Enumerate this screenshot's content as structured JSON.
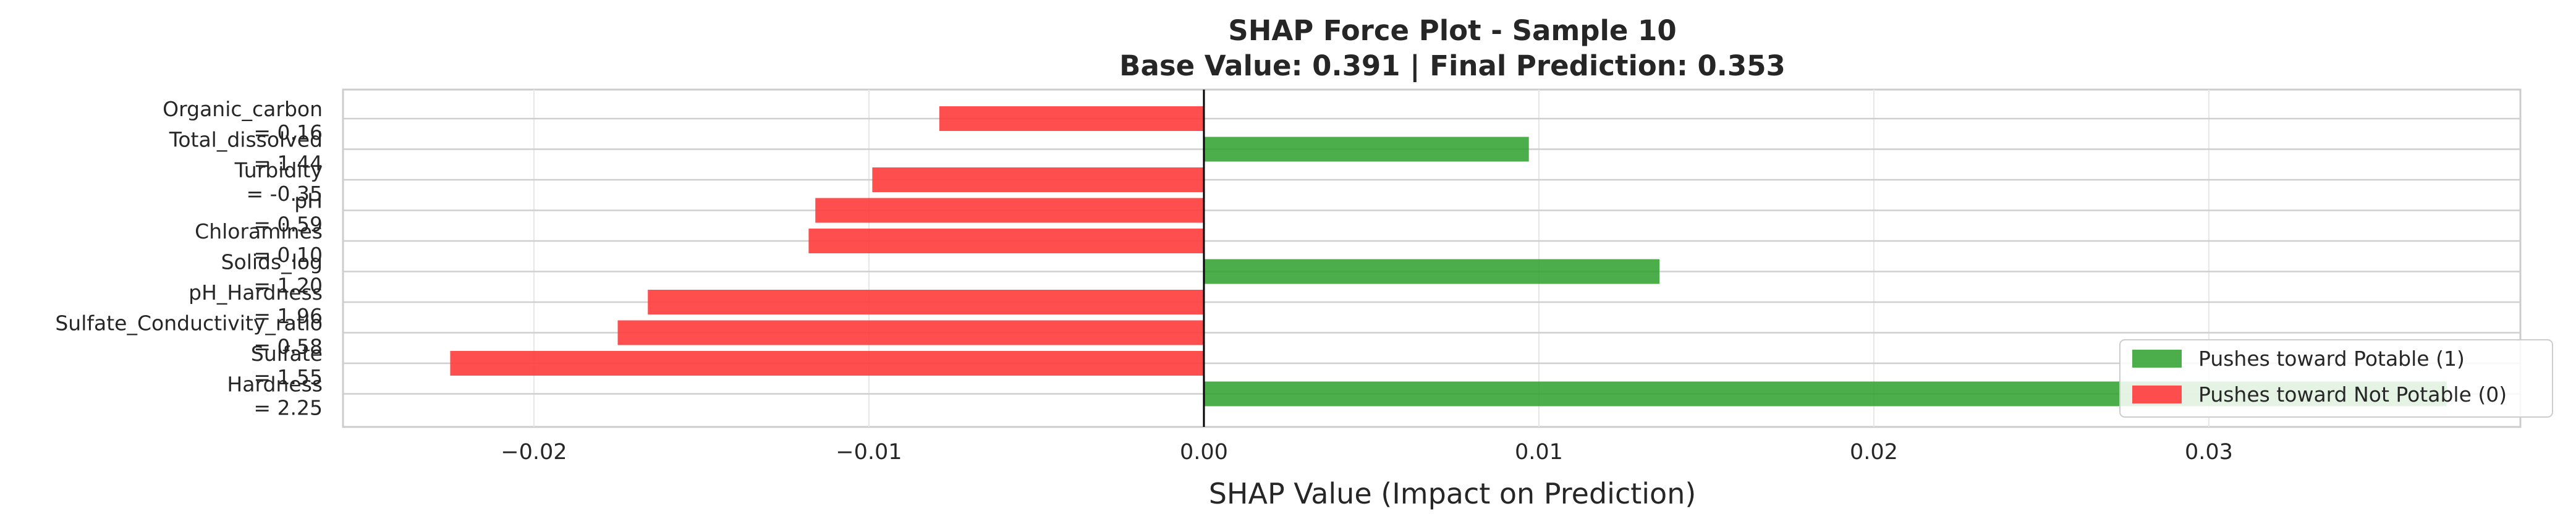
{
  "chart_data": {
    "type": "bar",
    "orientation": "horizontal",
    "title_line1": "SHAP Force Plot - Sample 10",
    "title_line2": "Base Value: 0.391 | Final Prediction: 0.353",
    "xlabel": "SHAP Value (Impact on Prediction)",
    "ylabel": "",
    "xlim": [
      -0.0257,
      0.0393
    ],
    "xticks": [
      -0.02,
      -0.01,
      0.0,
      0.01,
      0.02,
      0.03
    ],
    "xtick_labels": [
      "−0.02",
      "−0.01",
      "0.00",
      "0.01",
      "0.02",
      "0.03"
    ],
    "grid": true,
    "legend_position": "lower-right",
    "colors": {
      "positive": "#2ca02c",
      "negative": "#ff3b3b"
    },
    "legend": [
      {
        "label": "Pushes toward Potable (1)",
        "color": "#2ca02c"
      },
      {
        "label": "Pushes toward Not Potable (0)",
        "color": "#ff3b3b"
      }
    ],
    "bars": [
      {
        "feature": "Organic_carbon",
        "value_label": "= 0.16",
        "shap": -0.0079
      },
      {
        "feature": "Total_dissolved",
        "value_label": "= 1.44",
        "shap": 0.0097
      },
      {
        "feature": "Turbidity",
        "value_label": "= -0.35",
        "shap": -0.0099
      },
      {
        "feature": "pH",
        "value_label": "= 0.59",
        "shap": -0.0116
      },
      {
        "feature": "Chloramines",
        "value_label": "= 0.10",
        "shap": -0.0118
      },
      {
        "feature": "Solids_log",
        "value_label": "= 1.20",
        "shap": 0.0136
      },
      {
        "feature": "pH_Hardness",
        "value_label": "= 1.96",
        "shap": -0.0166
      },
      {
        "feature": "Sulfate_Conductivity_ratio",
        "value_label": "= 0.58",
        "shap": -0.0175
      },
      {
        "feature": "Sulfate",
        "value_label": "= 1.55",
        "shap": -0.0225
      },
      {
        "feature": "Hardness",
        "value_label": "= 2.25",
        "shap": 0.0371
      }
    ]
  }
}
